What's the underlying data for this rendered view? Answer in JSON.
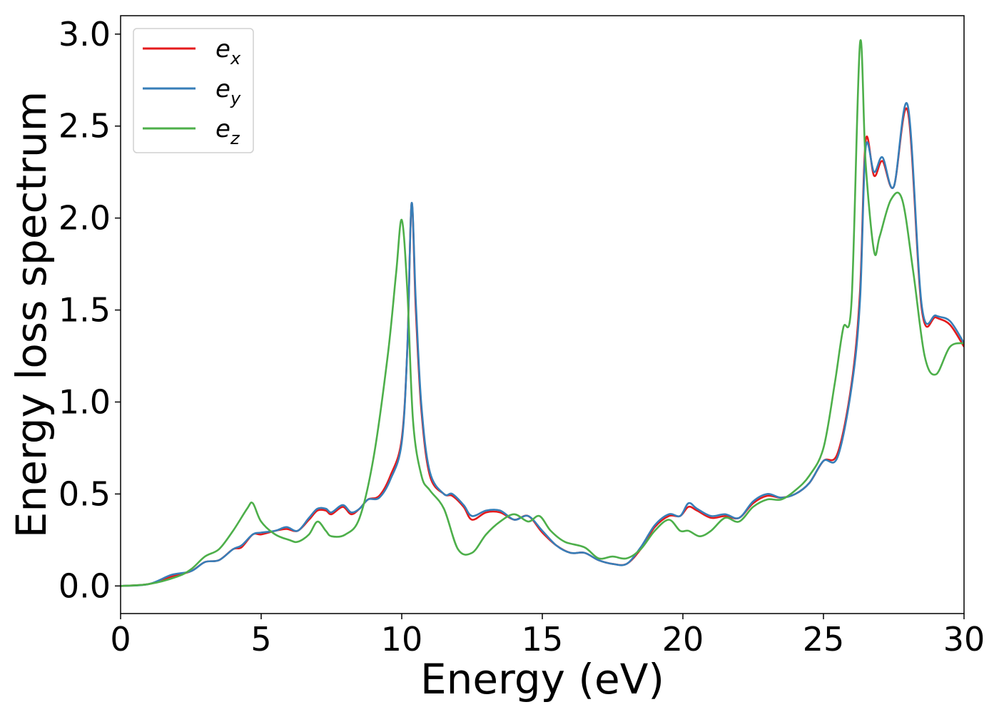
{
  "chart_data": {
    "type": "line",
    "title": "",
    "xlabel": "Energy (eV)",
    "ylabel": "Energy loss spectrum",
    "xlim": [
      0,
      30
    ],
    "ylim": [
      -0.15,
      3.1
    ],
    "xticks": [
      0,
      5,
      10,
      15,
      20,
      25,
      30
    ],
    "xtick_labels": [
      "0",
      "5",
      "10",
      "15",
      "20",
      "25",
      "30"
    ],
    "yticks": [
      0.0,
      0.5,
      1.0,
      1.5,
      2.0,
      2.5,
      3.0
    ],
    "ytick_labels": [
      "0.0",
      "0.5",
      "1.0",
      "1.5",
      "2.0",
      "2.5",
      "3.0"
    ],
    "grid": false,
    "legend_position": "top-left",
    "series": [
      {
        "name": "e_x",
        "label_base": "e",
        "label_sub": "x",
        "color": "#e41a1c",
        "points": [
          [
            0,
            0
          ],
          [
            1,
            0.01
          ],
          [
            1.8,
            0.05
          ],
          [
            2.5,
            0.08
          ],
          [
            3,
            0.13
          ],
          [
            3.5,
            0.14
          ],
          [
            4,
            0.2
          ],
          [
            4.3,
            0.21
          ],
          [
            4.7,
            0.28
          ],
          [
            5,
            0.28
          ],
          [
            5.5,
            0.3
          ],
          [
            5.9,
            0.31
          ],
          [
            6.3,
            0.3
          ],
          [
            6.7,
            0.36
          ],
          [
            7,
            0.41
          ],
          [
            7.3,
            0.41
          ],
          [
            7.5,
            0.39
          ],
          [
            7.9,
            0.43
          ],
          [
            8.2,
            0.39
          ],
          [
            8.5,
            0.42
          ],
          [
            8.8,
            0.47
          ],
          [
            9.2,
            0.49
          ],
          [
            9.6,
            0.6
          ],
          [
            10,
            0.8
          ],
          [
            10.2,
            1.3
          ],
          [
            10.35,
            2.08
          ],
          [
            10.5,
            1.5
          ],
          [
            10.7,
            0.95
          ],
          [
            11,
            0.6
          ],
          [
            11.5,
            0.5
          ],
          [
            11.8,
            0.49
          ],
          [
            12.2,
            0.43
          ],
          [
            12.5,
            0.36
          ],
          [
            13,
            0.4
          ],
          [
            13.5,
            0.4
          ],
          [
            14,
            0.36
          ],
          [
            14.5,
            0.38
          ],
          [
            15,
            0.29
          ],
          [
            15.5,
            0.22
          ],
          [
            16,
            0.18
          ],
          [
            16.5,
            0.18
          ],
          [
            17,
            0.14
          ],
          [
            17.5,
            0.12
          ],
          [
            18,
            0.12
          ],
          [
            18.5,
            0.2
          ],
          [
            19,
            0.32
          ],
          [
            19.5,
            0.38
          ],
          [
            19.9,
            0.38
          ],
          [
            20.2,
            0.43
          ],
          [
            20.5,
            0.41
          ],
          [
            21,
            0.37
          ],
          [
            21.5,
            0.38
          ],
          [
            22,
            0.37
          ],
          [
            22.5,
            0.45
          ],
          [
            23,
            0.49
          ],
          [
            23.5,
            0.48
          ],
          [
            24,
            0.5
          ],
          [
            24.5,
            0.56
          ],
          [
            25,
            0.68
          ],
          [
            25.5,
            0.72
          ],
          [
            26,
            1.1
          ],
          [
            26.3,
            1.6
          ],
          [
            26.5,
            2.42
          ],
          [
            26.8,
            2.23
          ],
          [
            27.1,
            2.31
          ],
          [
            27.5,
            2.17
          ],
          [
            28,
            2.58
          ],
          [
            28.5,
            1.5
          ],
          [
            29,
            1.46
          ],
          [
            29.5,
            1.42
          ],
          [
            30,
            1.3
          ]
        ]
      },
      {
        "name": "e_y",
        "label_base": "e",
        "label_sub": "y",
        "color": "#377eb8",
        "points": [
          [
            0,
            0
          ],
          [
            1,
            0.01
          ],
          [
            1.8,
            0.06
          ],
          [
            2.5,
            0.08
          ],
          [
            3,
            0.13
          ],
          [
            3.5,
            0.14
          ],
          [
            4,
            0.2
          ],
          [
            4.3,
            0.22
          ],
          [
            4.7,
            0.28
          ],
          [
            5,
            0.29
          ],
          [
            5.5,
            0.3
          ],
          [
            5.9,
            0.32
          ],
          [
            6.3,
            0.3
          ],
          [
            6.7,
            0.37
          ],
          [
            7,
            0.42
          ],
          [
            7.3,
            0.42
          ],
          [
            7.5,
            0.4
          ],
          [
            7.9,
            0.44
          ],
          [
            8.2,
            0.4
          ],
          [
            8.5,
            0.42
          ],
          [
            8.8,
            0.47
          ],
          [
            9.2,
            0.48
          ],
          [
            9.6,
            0.58
          ],
          [
            10,
            0.78
          ],
          [
            10.2,
            1.3
          ],
          [
            10.35,
            2.08
          ],
          [
            10.5,
            1.55
          ],
          [
            10.7,
            0.98
          ],
          [
            11,
            0.62
          ],
          [
            11.5,
            0.5
          ],
          [
            11.8,
            0.5
          ],
          [
            12.2,
            0.44
          ],
          [
            12.5,
            0.38
          ],
          [
            13,
            0.41
          ],
          [
            13.5,
            0.41
          ],
          [
            14,
            0.36
          ],
          [
            14.5,
            0.38
          ],
          [
            15,
            0.3
          ],
          [
            15.5,
            0.22
          ],
          [
            16,
            0.18
          ],
          [
            16.5,
            0.18
          ],
          [
            17,
            0.14
          ],
          [
            17.5,
            0.12
          ],
          [
            18,
            0.12
          ],
          [
            18.5,
            0.21
          ],
          [
            19,
            0.33
          ],
          [
            19.5,
            0.39
          ],
          [
            19.9,
            0.38
          ],
          [
            20.2,
            0.45
          ],
          [
            20.5,
            0.42
          ],
          [
            21,
            0.38
          ],
          [
            21.5,
            0.39
          ],
          [
            22,
            0.37
          ],
          [
            22.5,
            0.46
          ],
          [
            23,
            0.5
          ],
          [
            23.5,
            0.48
          ],
          [
            24,
            0.5
          ],
          [
            24.5,
            0.56
          ],
          [
            25,
            0.68
          ],
          [
            25.5,
            0.7
          ],
          [
            26,
            1.08
          ],
          [
            26.3,
            1.55
          ],
          [
            26.5,
            2.38
          ],
          [
            26.8,
            2.25
          ],
          [
            27.1,
            2.33
          ],
          [
            27.5,
            2.17
          ],
          [
            28,
            2.61
          ],
          [
            28.5,
            1.52
          ],
          [
            29,
            1.47
          ],
          [
            29.5,
            1.44
          ],
          [
            30,
            1.32
          ]
        ]
      },
      {
        "name": "e_z",
        "label_base": "e",
        "label_sub": "z",
        "color": "#4daf4a",
        "points": [
          [
            0,
            0
          ],
          [
            1,
            0.01
          ],
          [
            2,
            0.05
          ],
          [
            2.5,
            0.09
          ],
          [
            3,
            0.16
          ],
          [
            3.5,
            0.2
          ],
          [
            4,
            0.3
          ],
          [
            4.5,
            0.42
          ],
          [
            4.7,
            0.45
          ],
          [
            5,
            0.35
          ],
          [
            5.5,
            0.28
          ],
          [
            6,
            0.25
          ],
          [
            6.3,
            0.24
          ],
          [
            6.7,
            0.28
          ],
          [
            7,
            0.35
          ],
          [
            7.3,
            0.3
          ],
          [
            7.5,
            0.27
          ],
          [
            8,
            0.28
          ],
          [
            8.5,
            0.37
          ],
          [
            9,
            0.7
          ],
          [
            9.5,
            1.25
          ],
          [
            9.8,
            1.7
          ],
          [
            10,
            1.99
          ],
          [
            10.2,
            1.6
          ],
          [
            10.4,
            0.9
          ],
          [
            10.7,
            0.6
          ],
          [
            11,
            0.52
          ],
          [
            11.5,
            0.42
          ],
          [
            12,
            0.2
          ],
          [
            12.5,
            0.18
          ],
          [
            13,
            0.28
          ],
          [
            13.5,
            0.35
          ],
          [
            14,
            0.39
          ],
          [
            14.5,
            0.35
          ],
          [
            14.9,
            0.38
          ],
          [
            15.3,
            0.3
          ],
          [
            15.8,
            0.24
          ],
          [
            16.5,
            0.21
          ],
          [
            17,
            0.15
          ],
          [
            17.5,
            0.16
          ],
          [
            18,
            0.15
          ],
          [
            18.5,
            0.2
          ],
          [
            19,
            0.3
          ],
          [
            19.5,
            0.36
          ],
          [
            19.9,
            0.3
          ],
          [
            20.2,
            0.3
          ],
          [
            20.6,
            0.27
          ],
          [
            21,
            0.3
          ],
          [
            21.5,
            0.37
          ],
          [
            22,
            0.35
          ],
          [
            22.5,
            0.43
          ],
          [
            23,
            0.47
          ],
          [
            23.5,
            0.47
          ],
          [
            24,
            0.52
          ],
          [
            24.5,
            0.6
          ],
          [
            25,
            0.75
          ],
          [
            25.4,
            1.1
          ],
          [
            25.7,
            1.4
          ],
          [
            26,
            1.55
          ],
          [
            26.3,
            2.95
          ],
          [
            26.5,
            2.3
          ],
          [
            26.8,
            1.82
          ],
          [
            27,
            1.9
          ],
          [
            27.4,
            2.1
          ],
          [
            27.8,
            2.1
          ],
          [
            28.2,
            1.7
          ],
          [
            28.6,
            1.25
          ],
          [
            29,
            1.15
          ],
          [
            29.5,
            1.3
          ],
          [
            30,
            1.32
          ]
        ]
      }
    ]
  }
}
